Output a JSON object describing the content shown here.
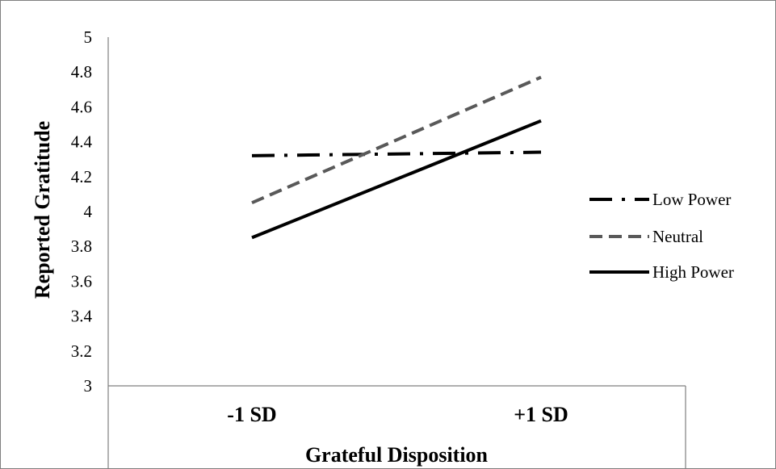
{
  "chart_data": {
    "type": "line",
    "title": "",
    "xlabel": "Grateful Disposition",
    "ylabel": "Reported Gratitude",
    "categories": [
      "-1 SD",
      "+1 SD"
    ],
    "ylim": [
      3,
      5
    ],
    "yticks": [
      3,
      3.2,
      3.4,
      3.6,
      3.8,
      4,
      4.2,
      4.4,
      4.6,
      4.8,
      5
    ],
    "ytick_labels": [
      "3",
      "3.2",
      "3.4",
      "3.6",
      "3.8",
      "4",
      "4.2",
      "4.4",
      "4.6",
      "4.8",
      "5"
    ],
    "grid": false,
    "legend_position": "right",
    "series": [
      {
        "name": "Low Power",
        "values": [
          4.32,
          4.34
        ],
        "color": "#000000",
        "style": "dash-dot"
      },
      {
        "name": "Neutral",
        "values": [
          4.05,
          4.77
        ],
        "color": "#595959",
        "style": "dashed"
      },
      {
        "name": "High Power",
        "values": [
          3.85,
          4.52
        ],
        "color": "#000000",
        "style": "solid"
      }
    ]
  }
}
